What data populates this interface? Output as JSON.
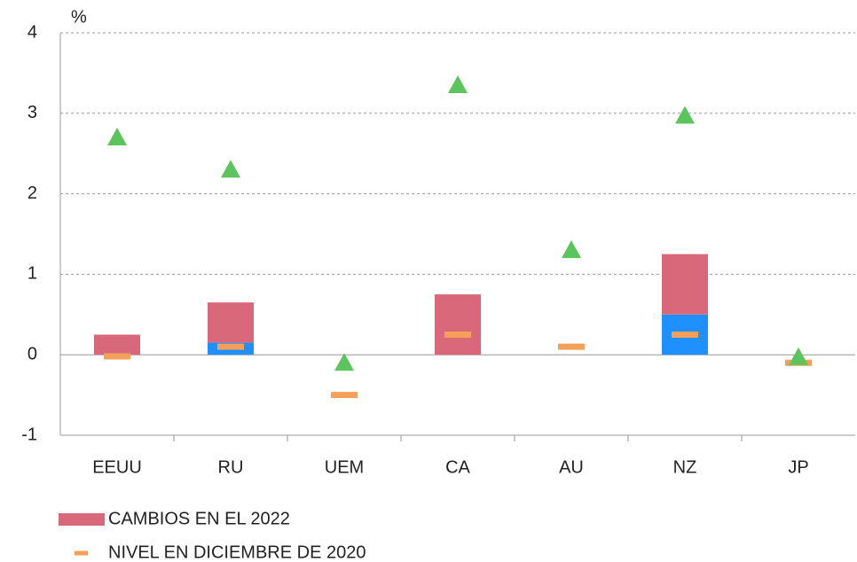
{
  "chart_data": {
    "type": "bar",
    "stacked": true,
    "y_unit": "%",
    "categories": [
      "EEUU",
      "RU",
      "UEM",
      "CA",
      "AU",
      "NZ",
      "JP"
    ],
    "series": [
      {
        "color": "#1e90ff",
        "marker": "bar",
        "values": [
          0,
          0.15,
          0,
          0,
          0,
          0.5,
          0
        ]
      },
      {
        "name": "CAMBIOS EN EL 2022",
        "color": "#d9687a",
        "marker": "bar",
        "values": [
          0.25,
          0.5,
          0,
          0.75,
          0,
          0.75,
          0
        ]
      },
      {
        "name": "NIVEL EN DICIEMBRE DE 2020",
        "color": "#f5a05a",
        "marker": "dash",
        "values": [
          -0.02,
          0.1,
          -0.5,
          0.25,
          0.1,
          0.25,
          -0.1
        ]
      },
      {
        "color": "#5cc45c",
        "marker": "triangle",
        "values": [
          2.7,
          2.3,
          -0.1,
          3.35,
          1.3,
          2.97,
          -0.03
        ]
      }
    ],
    "ylim": [
      -1,
      4
    ],
    "yticks": [
      -1,
      0,
      1,
      2,
      3,
      4
    ],
    "grid": true
  }
}
